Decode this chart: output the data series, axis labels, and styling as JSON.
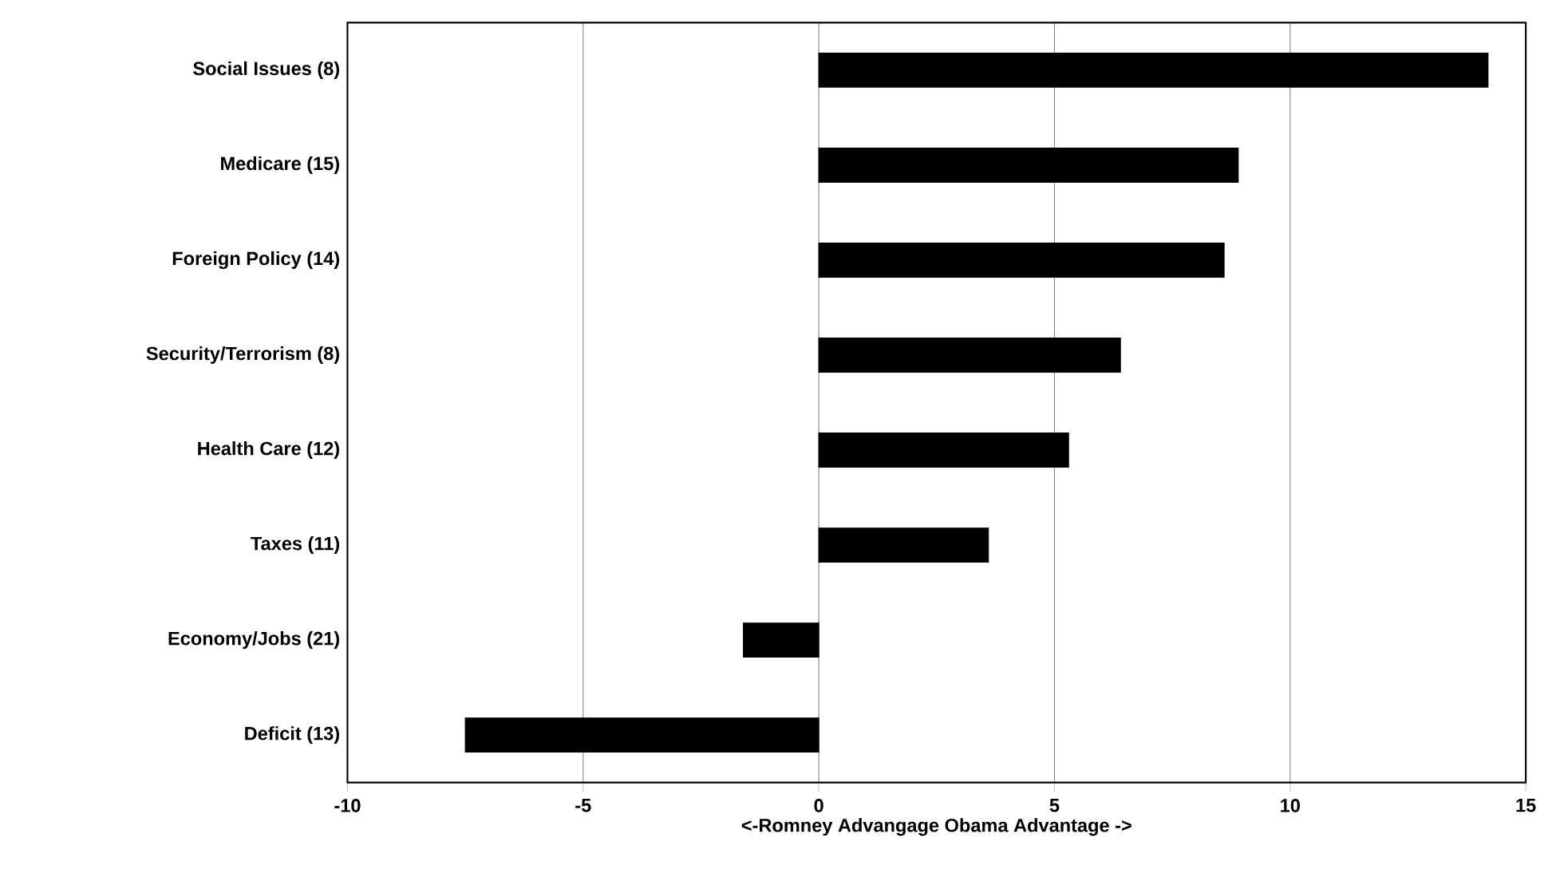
{
  "chart_data": {
    "type": "bar",
    "orientation": "horizontal",
    "categories": [
      "Social Issues (8)",
      "Medicare  (15)",
      "Foreign Policy  (14)",
      "Security/Terrorism  (8)",
      "Health Care (12)",
      "Taxes  (11)",
      "Economy/Jobs  (21)",
      "Deficit (13)"
    ],
    "values": [
      14.2,
      8.9,
      8.6,
      6.4,
      5.3,
      3.6,
      -1.6,
      -7.5
    ],
    "color": "#000000",
    "xlim": [
      -10,
      15
    ],
    "xticks": [
      -10,
      -5,
      0,
      5,
      10,
      15
    ],
    "xlabel": "<-Romney Advangage Obama Advantage ->",
    "grid": "x"
  }
}
